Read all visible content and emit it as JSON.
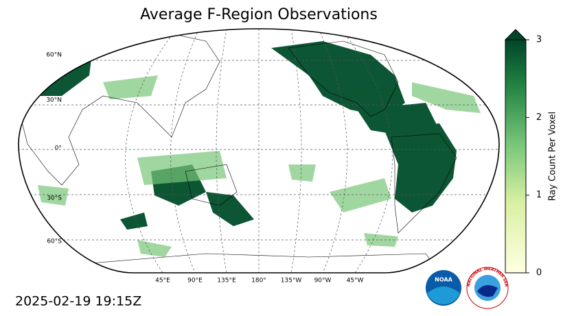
{
  "title": "Average F-Region Observations",
  "map": {
    "lat_labels": [
      "60°N",
      "30°N",
      "0°",
      "30°S",
      "60°S"
    ],
    "lon_labels": [
      "45°E",
      "90°E",
      "135°E",
      "180°",
      "135°W",
      "90°W",
      "45°W"
    ]
  },
  "colorbar": {
    "label": "Ray Count Per Voxel",
    "range": [
      0,
      3
    ],
    "ticks": [
      0,
      1,
      2,
      3
    ]
  },
  "timestamp": "2025-02-19 19:15Z",
  "logos": {
    "noaa": "NOAA",
    "nws": "NATIONAL WEATHER SERVICE"
  }
}
